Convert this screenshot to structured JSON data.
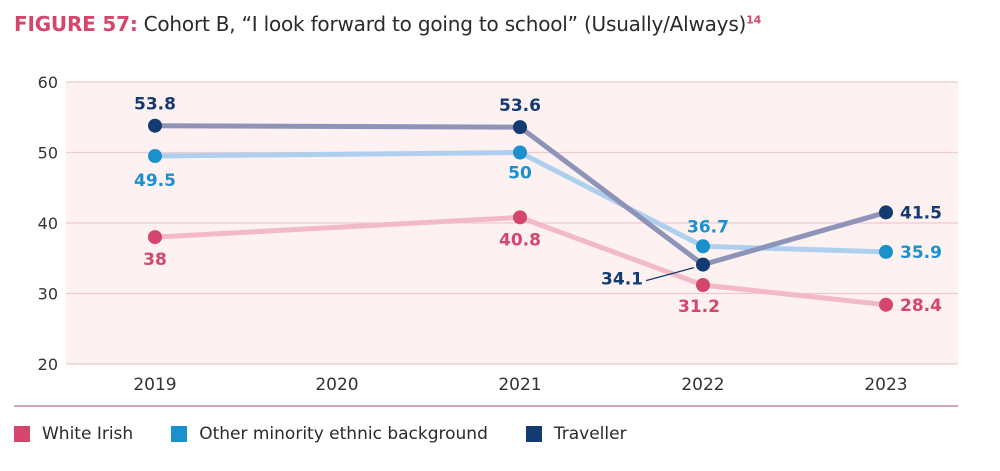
{
  "header": {
    "figure_label": "FIGURE 57:",
    "title": "Cohort B, “I look forward to going to school” (Usually/Always)",
    "footnote": "14"
  },
  "colors": {
    "white_irish": "#d4466c",
    "other_minority": "#1a90cc",
    "traveller": "#133a72",
    "white_irish_line": "#f2b9c6",
    "other_minority_line": "#aecfee",
    "traveller_line": "#8e93b8",
    "plot_bg": "#fdf1f2",
    "grid": "#f0c9d1"
  },
  "chart_data": {
    "type": "line",
    "title": "Cohort B, “I look forward to going to school” (Usually/Always)",
    "xlabel": "",
    "ylabel": "",
    "categories": [
      "2019",
      "2020",
      "2021",
      "2022",
      "2023"
    ],
    "ylim": [
      20,
      60
    ],
    "yticks": [
      60,
      50,
      40,
      30,
      20
    ],
    "grid": true,
    "legend_position": "bottom",
    "series": [
      {
        "name": "White Irish",
        "key": "white_irish",
        "values": [
          38,
          null,
          40.8,
          31.2,
          28.4
        ],
        "labels": [
          "38",
          "",
          "40.8",
          "31.2",
          "28.4"
        ]
      },
      {
        "name": "Other minority ethnic background",
        "key": "other_minority",
        "values": [
          49.5,
          null,
          50,
          36.7,
          35.9
        ],
        "labels": [
          "49.5",
          "",
          "50",
          "36.7",
          "35.9"
        ]
      },
      {
        "name": "Traveller",
        "key": "traveller",
        "values": [
          53.8,
          null,
          53.6,
          34.1,
          41.5
        ],
        "labels": [
          "53.8",
          "",
          "53.6",
          "34.1",
          "41.5"
        ]
      }
    ]
  },
  "legend": {
    "items": [
      {
        "label": "White Irish",
        "key": "white_irish"
      },
      {
        "label": "Other minority ethnic background",
        "key": "other_minority"
      },
      {
        "label": "Traveller",
        "key": "traveller"
      }
    ]
  }
}
